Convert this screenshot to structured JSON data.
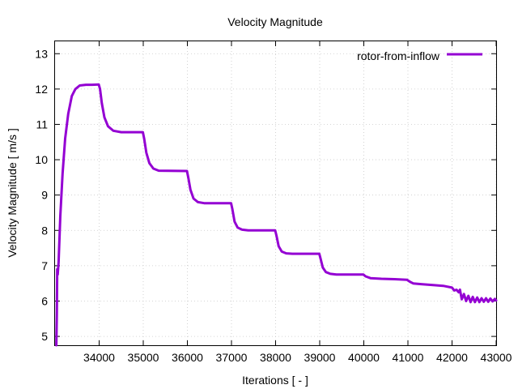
{
  "chart_data": {
    "type": "line",
    "title": "Velocity Magnitude",
    "xlabel": "Iterations [ - ]",
    "ylabel": "Velocity Magnitude [ m/s ]",
    "xlim": [
      33000,
      43000
    ],
    "ylim": [
      4.75,
      13.35
    ],
    "xticks": [
      34000,
      35000,
      36000,
      37000,
      38000,
      39000,
      40000,
      41000,
      42000,
      43000
    ],
    "yticks": [
      5,
      6,
      7,
      8,
      9,
      10,
      11,
      12,
      13
    ],
    "grid": true,
    "legend_position": "top-right",
    "series": [
      {
        "name": "rotor-from-inflow",
        "color": "#9400d3",
        "points": [
          [
            33030,
            4.75
          ],
          [
            33040,
            5.6
          ],
          [
            33050,
            6.9
          ],
          [
            33060,
            6.75
          ],
          [
            33080,
            7.1
          ],
          [
            33120,
            8.4
          ],
          [
            33170,
            9.6
          ],
          [
            33230,
            10.6
          ],
          [
            33300,
            11.3
          ],
          [
            33380,
            11.8
          ],
          [
            33460,
            12.0
          ],
          [
            33560,
            12.1
          ],
          [
            33700,
            12.12
          ],
          [
            33840,
            12.12
          ],
          [
            33990,
            12.13
          ],
          [
            34020,
            12.0
          ],
          [
            34060,
            11.6
          ],
          [
            34120,
            11.2
          ],
          [
            34200,
            10.95
          ],
          [
            34320,
            10.82
          ],
          [
            34500,
            10.78
          ],
          [
            34990,
            10.78
          ],
          [
            35020,
            10.6
          ],
          [
            35070,
            10.2
          ],
          [
            35140,
            9.9
          ],
          [
            35230,
            9.75
          ],
          [
            35350,
            9.69
          ],
          [
            35990,
            9.68
          ],
          [
            36020,
            9.5
          ],
          [
            36070,
            9.15
          ],
          [
            36140,
            8.9
          ],
          [
            36240,
            8.8
          ],
          [
            36380,
            8.77
          ],
          [
            36990,
            8.77
          ],
          [
            37020,
            8.6
          ],
          [
            37070,
            8.25
          ],
          [
            37140,
            8.08
          ],
          [
            37240,
            8.02
          ],
          [
            37380,
            8.0
          ],
          [
            37990,
            8.0
          ],
          [
            38020,
            7.85
          ],
          [
            38070,
            7.55
          ],
          [
            38140,
            7.4
          ],
          [
            38240,
            7.35
          ],
          [
            38380,
            7.34
          ],
          [
            38990,
            7.34
          ],
          [
            39020,
            7.2
          ],
          [
            39070,
            6.95
          ],
          [
            39140,
            6.82
          ],
          [
            39240,
            6.77
          ],
          [
            39380,
            6.75
          ],
          [
            39990,
            6.75
          ],
          [
            40040,
            6.7
          ],
          [
            40150,
            6.65
          ],
          [
            40400,
            6.63
          ],
          [
            40700,
            6.62
          ],
          [
            40980,
            6.6
          ],
          [
            41040,
            6.55
          ],
          [
            41120,
            6.5
          ],
          [
            41300,
            6.48
          ],
          [
            41600,
            6.45
          ],
          [
            41800,
            6.43
          ],
          [
            42000,
            6.38
          ],
          [
            42050,
            6.3
          ],
          [
            42100,
            6.32
          ],
          [
            42150,
            6.25
          ],
          [
            42180,
            6.32
          ],
          [
            42220,
            6.05
          ],
          [
            42270,
            6.2
          ],
          [
            42320,
            6.0
          ],
          [
            42370,
            6.15
          ],
          [
            42420,
            5.97
          ],
          [
            42470,
            6.12
          ],
          [
            42520,
            5.97
          ],
          [
            42570,
            6.1
          ],
          [
            42620,
            5.97
          ],
          [
            42670,
            6.08
          ],
          [
            42720,
            5.98
          ],
          [
            42770,
            6.08
          ],
          [
            42820,
            5.98
          ],
          [
            42870,
            6.07
          ],
          [
            42920,
            5.99
          ],
          [
            42970,
            6.06
          ],
          [
            43000,
            6.02
          ]
        ]
      }
    ]
  }
}
